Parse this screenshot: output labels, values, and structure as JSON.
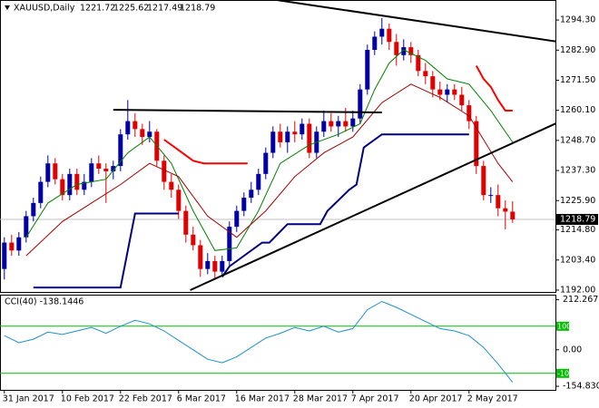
{
  "chart_data": [
    {
      "type": "candlestick",
      "symbol": "XAUUSD,Daily",
      "xlim": [
        -0.6,
        75.9
      ],
      "xticks": [
        {
          "value": 0,
          "label": "31 Jan 2017"
        },
        {
          "value": 8,
          "label": "10 Feb 2017"
        },
        {
          "value": 16,
          "label": "22 Feb 2017"
        },
        {
          "value": 24,
          "label": "6 Mar 2017"
        },
        {
          "value": 32,
          "label": "16 Mar 2017"
        },
        {
          "value": 40,
          "label": "28 Mar 2017"
        },
        {
          "value": 48,
          "label": "7 Apr 2017"
        },
        {
          "value": 56,
          "label": "20 Apr 2017"
        },
        {
          "value": 64,
          "label": "2 May 2017"
        }
      ],
      "ylim": [
        1191.3,
        1301.2
      ],
      "yticks": [
        {
          "value": 1294.3,
          "label": "1294.30"
        },
        {
          "value": 1282.9,
          "label": "1282.90"
        },
        {
          "value": 1271.5,
          "label": "1271.50"
        },
        {
          "value": 1260.1,
          "label": "1260.10"
        },
        {
          "value": 1248.7,
          "label": "1248.70"
        },
        {
          "value": 1237.3,
          "label": "1237.30"
        },
        {
          "value": 1225.9,
          "label": "1225.90"
        },
        {
          "value": 1214.8,
          "label": "1214.80"
        },
        {
          "value": 1203.4,
          "label": "1203.40"
        },
        {
          "value": 1192,
          "label": "1192.00"
        }
      ],
      "up_color": "#0000a0",
      "down_color": "#e00000",
      "price_line_color": "#c0c0c0",
      "candles": {
        "open": [
          1200,
          1210,
          1207,
          1212,
          1220,
          1225,
          1233,
          1240,
          1234,
          1228,
          1236,
          1230,
          1233,
          1240,
          1238,
          1237,
          1239,
          1251,
          1256,
          1253,
          1250,
          1252,
          1241,
          1233,
          1230,
          1222,
          1213,
          1209,
          1200,
          1203,
          1199,
          1203,
          1216,
          1222,
          1227,
          1230,
          1236,
          1244,
          1252,
          1248,
          1252,
          1251,
          1255,
          1244,
          1252,
          1256,
          1254,
          1256,
          1254,
          1257,
          1268,
          1283,
          1288,
          1291,
          1286,
          1281,
          1284,
          1281,
          1275,
          1273,
          1268,
          1266,
          1268,
          1266,
          1262,
          1256,
          1239,
          1228,
          1228,
          1223,
          1221.72
        ],
        "high": [
          1212,
          1213,
          1214,
          1222,
          1227,
          1235,
          1243,
          1242,
          1236,
          1238,
          1238,
          1236,
          1242,
          1243,
          1240,
          1241,
          1253,
          1264,
          1259,
          1255,
          1256,
          1253,
          1243,
          1236,
          1232,
          1224,
          1216,
          1211,
          1206,
          1205,
          1205,
          1218,
          1224,
          1229,
          1233,
          1238,
          1246,
          1254,
          1255,
          1254,
          1256,
          1257,
          1257,
          1254,
          1260,
          1259,
          1258,
          1261,
          1260,
          1270,
          1285,
          1290,
          1295,
          1293,
          1289,
          1287,
          1286,
          1283,
          1278,
          1275,
          1271,
          1270,
          1270,
          1269,
          1264,
          1258,
          1241,
          1231,
          1232,
          1226,
          1225.62
        ],
        "low": [
          1196,
          1205,
          1205,
          1210,
          1218,
          1223,
          1231,
          1232,
          1226,
          1226,
          1228,
          1228,
          1231,
          1236,
          1225,
          1234,
          1237,
          1249,
          1250,
          1247,
          1248,
          1239,
          1230,
          1227,
          1219,
          1210,
          1207,
          1197,
          1198,
          1196,
          1197,
          1201,
          1214,
          1220,
          1225,
          1228,
          1234,
          1242,
          1246,
          1244,
          1248,
          1249,
          1242,
          1242,
          1250,
          1252,
          1250,
          1252,
          1252,
          1255,
          1266,
          1281,
          1285,
          1283,
          1277,
          1279,
          1278,
          1273,
          1270,
          1265,
          1264,
          1263,
          1264,
          1260,
          1253,
          1236,
          1226,
          1225,
          1220,
          1215,
          1217.49
        ],
        "close": [
          1210,
          1207,
          1212,
          1220,
          1225,
          1233,
          1240,
          1234,
          1228,
          1236,
          1230,
          1233,
          1240,
          1238,
          1237,
          1239,
          1251,
          1256,
          1253,
          1250,
          1252,
          1241,
          1233,
          1230,
          1222,
          1213,
          1209,
          1200,
          1203,
          1199,
          1203,
          1216,
          1222,
          1227,
          1230,
          1236,
          1244,
          1252,
          1248,
          1252,
          1251,
          1255,
          1244,
          1252,
          1256,
          1254,
          1256,
          1254,
          1257,
          1268,
          1283,
          1288,
          1291,
          1286,
          1281,
          1284,
          1281,
          1275,
          1273,
          1268,
          1266,
          1268,
          1266,
          1262,
          1256,
          1239,
          1228,
          1228,
          1223,
          1221.72,
          1218.79
        ]
      },
      "lines": [
        {
          "color": "#008000",
          "width": 1,
          "x": [
            3,
            6,
            10,
            14,
            17,
            20,
            23,
            26,
            29,
            32,
            35,
            38,
            42,
            46,
            49,
            51,
            53,
            55,
            58,
            61,
            64,
            67,
            70
          ],
          "values": [
            1212,
            1225,
            1232,
            1234,
            1244,
            1250,
            1240,
            1222,
            1207,
            1208,
            1222,
            1240,
            1247,
            1251,
            1255,
            1268,
            1278,
            1283,
            1279,
            1272,
            1270,
            1260,
            1248
          ]
        },
        {
          "color": "#a00000",
          "width": 1,
          "x": [
            3,
            8,
            12,
            16,
            20,
            24,
            28,
            32,
            36,
            40,
            44,
            48,
            52,
            56,
            60,
            64,
            68,
            70
          ],
          "values": [
            1205,
            1218,
            1225,
            1232,
            1240,
            1235,
            1220,
            1212,
            1222,
            1235,
            1244,
            1250,
            1263,
            1270,
            1265,
            1258,
            1240,
            1233
          ]
        },
        {
          "color": "#000080",
          "width": 2,
          "x": [
            4,
            16,
            18,
            24,
            27,
            30,
            31,
            35.5,
            36.5,
            39,
            43.5,
            44.5,
            47.5,
            48.5,
            49.5,
            52,
            64
          ],
          "values": [
            1193,
            1193,
            1221,
            1221,
            null,
            1197,
            1201,
            1210,
            1210,
            1217,
            1217,
            1222,
            1230,
            1232,
            1246,
            1251,
            1251
          ]
        },
        {
          "color": "#ff0000",
          "width": 2,
          "x": [
            22,
            24,
            26,
            27.5,
            33.5
          ],
          "values": [
            1249,
            1245,
            1241,
            1240,
            1240
          ]
        },
        {
          "color": "#ff0000",
          "width": 2,
          "x": [
            65,
            66,
            67,
            68,
            69,
            70
          ],
          "values": [
            1277,
            1272,
            1269,
            1264,
            1260,
            1260
          ]
        },
        {
          "color": "#000000",
          "width": 2,
          "x": [
            37.5,
            76.25
          ],
          "values": [
            1301.9,
            1286.1
          ]
        },
        {
          "color": "#000000",
          "width": 2,
          "x": [
            25.6,
            76.25
          ],
          "values": [
            1192,
            1255.5
          ]
        },
        {
          "color": "#000000",
          "width": 2,
          "x": [
            15,
            52
          ],
          "values": [
            1260.3,
            1259.3
          ]
        }
      ]
    },
    {
      "type": "line",
      "title": "CCI(40) -138.1446",
      "xlim": [
        -0.6,
        75.9
      ],
      "ylim": [
        -170,
        230
      ],
      "yticks": [
        212.267,
        {
          "value": 0,
          "label": "0.00"
        },
        {
          "value": -154.83,
          "label": "-154.830"
        }
      ],
      "levels": [
        100,
        -100
      ],
      "level_color": "#00c000",
      "series": [
        {
          "color": "#1e90c8",
          "x": [
            0,
            2,
            4,
            6,
            8,
            10,
            12,
            14,
            16,
            18,
            20,
            22,
            24,
            26,
            28,
            30,
            32,
            34,
            36,
            38,
            40,
            42,
            44,
            46,
            48,
            50,
            52,
            54,
            56,
            58,
            60,
            62,
            64,
            66,
            68,
            70
          ],
          "values": [
            60,
            30,
            45,
            75,
            65,
            80,
            95,
            70,
            100,
            125,
            110,
            80,
            40,
            0,
            -40,
            -55,
            -30,
            10,
            50,
            70,
            95,
            80,
            100,
            75,
            90,
            170,
            205,
            180,
            150,
            120,
            90,
            80,
            60,
            10,
            -60,
            -138.1446
          ]
        }
      ]
    }
  ]
}
